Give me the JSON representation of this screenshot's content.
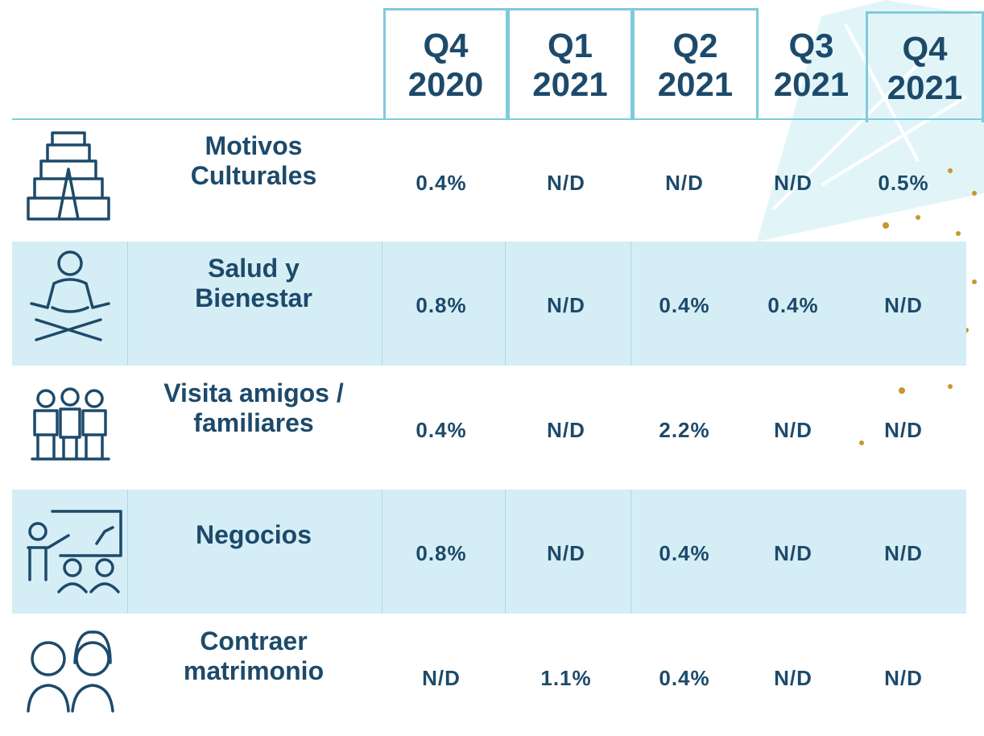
{
  "table": {
    "columns": [
      {
        "quarter": "Q4",
        "year": "2020"
      },
      {
        "quarter": "Q1",
        "year": "2021"
      },
      {
        "quarter": "Q2",
        "year": "2021"
      },
      {
        "quarter": "Q3",
        "year": "2021"
      },
      {
        "quarter": "Q4",
        "year": "2021"
      }
    ],
    "rows": [
      {
        "label": "Motivos\nCulturales",
        "values": [
          "0.4%",
          "N/D",
          "N/D",
          "N/D",
          "0.5%"
        ]
      },
      {
        "label": "Salud y\nBienestar",
        "values": [
          "0.8%",
          "N/D",
          "0.4%",
          "0.4%",
          "N/D"
        ]
      },
      {
        "label": "Visita amigos /\nfamiliares",
        "values": [
          "0.4%",
          "N/D",
          "2.2%",
          "N/D",
          "N/D"
        ]
      },
      {
        "label": "Negocios",
        "values": [
          "0.8%",
          "N/D",
          "0.4%",
          "N/D",
          "N/D"
        ]
      },
      {
        "label": "Contraer\nmatrimonio",
        "values": [
          "N/D",
          "1.1%",
          "0.4%",
          "N/D",
          "N/D"
        ]
      }
    ]
  }
}
